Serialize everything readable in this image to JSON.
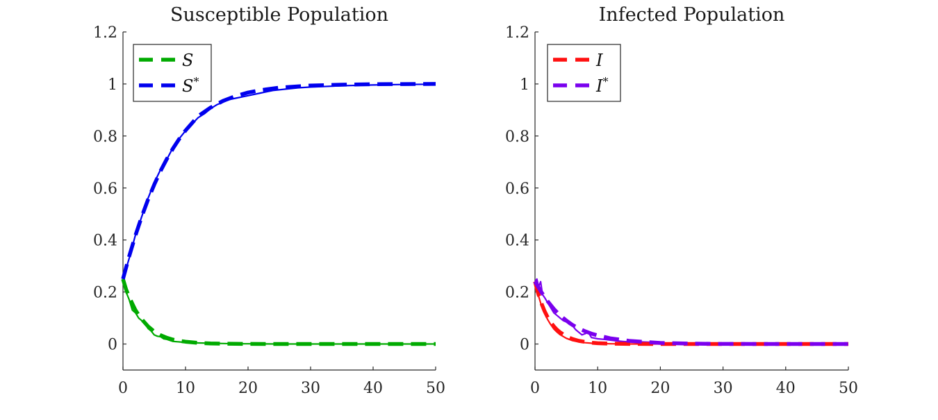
{
  "chart_data": [
    {
      "type": "line",
      "title": "Susceptible Population",
      "xlabel": "",
      "ylabel": "",
      "xlim": [
        0,
        50
      ],
      "ylim": [
        -0.1,
        1.2
      ],
      "xticks": [
        "0",
        "10",
        "20",
        "30",
        "40",
        "50"
      ],
      "yticks": [
        "0",
        "0.2",
        "0.4",
        "0.6",
        "0.8",
        "1",
        "1.2"
      ],
      "legend_position": "top-left",
      "series": [
        {
          "name": "S",
          "legend_sup": "",
          "color": "#00aa00",
          "style": "solid",
          "x": [
            0,
            0.5,
            1,
            1.5,
            2,
            2.5,
            3,
            3.5,
            4,
            4.5,
            5,
            5.5,
            6,
            6.5,
            7,
            8,
            9,
            10,
            12,
            14,
            16,
            18,
            20,
            25,
            30,
            40,
            50
          ],
          "y": [
            0.25,
            0.2,
            0.17,
            0.13,
            0.12,
            0.1,
            0.09,
            0.08,
            0.06,
            0.05,
            0.035,
            0.03,
            0.028,
            0.02,
            0.018,
            0.01,
            0.008,
            0.006,
            0.004,
            0.003,
            0.002,
            0.001,
            0.001,
            0,
            0,
            0,
            0
          ]
        },
        {
          "name": "S",
          "legend_sup": "",
          "color": "#00aa00",
          "style": "dashed",
          "x": [
            0,
            0.5,
            1,
            1.5,
            2,
            2.5,
            3,
            4,
            5,
            6,
            7,
            8,
            9,
            10,
            12,
            14,
            16,
            18,
            20,
            25,
            30,
            40,
            50
          ],
          "y": [
            0.25,
            0.21,
            0.18,
            0.155,
            0.13,
            0.112,
            0.095,
            0.068,
            0.048,
            0.034,
            0.024,
            0.017,
            0.012,
            0.009,
            0.0045,
            0.0022,
            0.0011,
            0.0006,
            0.0003,
            0.0001,
            0,
            0,
            0
          ]
        },
        {
          "name": "S",
          "legend_sup": "*",
          "color": "#0000ee",
          "style": "solid",
          "x": [
            0,
            1,
            2,
            3,
            4,
            5,
            6,
            7,
            8,
            9,
            10,
            11,
            12,
            13,
            14,
            15,
            16,
            17,
            18,
            19,
            20,
            22,
            24,
            26,
            28,
            30,
            32,
            35,
            40,
            45,
            50
          ],
          "y": [
            0.25,
            0.33,
            0.42,
            0.49,
            0.56,
            0.62,
            0.67,
            0.71,
            0.755,
            0.79,
            0.82,
            0.845,
            0.87,
            0.885,
            0.905,
            0.92,
            0.93,
            0.94,
            0.945,
            0.95,
            0.955,
            0.965,
            0.975,
            0.98,
            0.985,
            0.988,
            0.99,
            0.993,
            0.996,
            0.998,
            0.999
          ]
        },
        {
          "name": "S",
          "legend_sup": "*",
          "color": "#0000ee",
          "style": "dashed",
          "x": [
            0,
            1,
            2,
            3,
            4,
            5,
            6,
            7,
            8,
            9,
            10,
            12,
            14,
            16,
            18,
            20,
            22,
            25,
            30,
            35,
            40,
            45,
            50
          ],
          "y": [
            0.25,
            0.338,
            0.418,
            0.49,
            0.555,
            0.613,
            0.665,
            0.711,
            0.752,
            0.789,
            0.821,
            0.876,
            0.909,
            0.935,
            0.953,
            0.967,
            0.976,
            0.986,
            0.994,
            0.997,
            0.999,
            0.9995,
            1.0
          ]
        }
      ]
    },
    {
      "type": "line",
      "title": "Infected Population",
      "xlabel": "",
      "ylabel": "",
      "xlim": [
        0,
        50
      ],
      "ylim": [
        -0.1,
        1.2
      ],
      "xticks": [
        "0",
        "10",
        "20",
        "30",
        "40",
        "50"
      ],
      "yticks": [
        "0",
        "0.2",
        "0.4",
        "0.6",
        "0.8",
        "1",
        "1.2"
      ],
      "legend_position": "top-left",
      "series": [
        {
          "name": "I",
          "legend_sup": "",
          "color": "#ff1010",
          "style": "solid",
          "x": [
            0,
            0.5,
            1,
            1.5,
            2,
            2.5,
            3,
            3.5,
            4,
            5,
            6,
            7,
            8,
            9,
            10,
            12,
            15,
            20,
            30,
            40,
            50
          ],
          "y": [
            0.24,
            0.19,
            0.15,
            0.12,
            0.095,
            0.075,
            0.058,
            0.046,
            0.036,
            0.022,
            0.013,
            0.008,
            0.005,
            0.003,
            0.002,
            0.001,
            0,
            0,
            0,
            0,
            0
          ]
        },
        {
          "name": "I",
          "legend_sup": "",
          "color": "#ff1010",
          "style": "dashed",
          "x": [
            0,
            0.5,
            1,
            1.5,
            2,
            2.5,
            3,
            3.5,
            4,
            5,
            6,
            7,
            8,
            9,
            10,
            12,
            15,
            20,
            30,
            40,
            50
          ],
          "y": [
            0.24,
            0.195,
            0.158,
            0.128,
            0.104,
            0.084,
            0.068,
            0.055,
            0.045,
            0.029,
            0.019,
            0.012,
            0.008,
            0.005,
            0.003,
            0.0015,
            0.0005,
            0,
            0,
            0,
            0
          ]
        },
        {
          "name": "I",
          "legend_sup": "*",
          "color": "#7a00ee",
          "style": "solid",
          "x": [
            0,
            0.3,
            0.6,
            0.9,
            1.2,
            1.5,
            2,
            2.5,
            3,
            3.5,
            4,
            4.5,
            5,
            5.5,
            6,
            6.5,
            7,
            7.5,
            8,
            8.5,
            9,
            10,
            11,
            12,
            13,
            14,
            15,
            16,
            18,
            20,
            22,
            25,
            30,
            40,
            50
          ],
          "y": [
            0.24,
            0.25,
            0.22,
            0.24,
            0.19,
            0.18,
            0.16,
            0.14,
            0.12,
            0.11,
            0.1,
            0.09,
            0.085,
            0.075,
            0.07,
            0.055,
            0.045,
            0.035,
            0.04,
            0.045,
            0.025,
            0.02,
            0.018,
            0.015,
            0.012,
            0.01,
            0.008,
            0.009,
            0.007,
            0.004,
            0.003,
            0.002,
            0.001,
            0.0005,
            0
          ]
        },
        {
          "name": "I",
          "legend_sup": "*",
          "color": "#7a00ee",
          "style": "dashed",
          "x": [
            0,
            1,
            2,
            3,
            4,
            5,
            6,
            7,
            8,
            9,
            10,
            12,
            15,
            20,
            25,
            30,
            40,
            50
          ],
          "y": [
            0.24,
            0.2,
            0.165,
            0.135,
            0.11,
            0.09,
            0.073,
            0.06,
            0.049,
            0.04,
            0.033,
            0.022,
            0.012,
            0.004,
            0.0015,
            0.0005,
            0,
            0
          ]
        }
      ]
    }
  ]
}
